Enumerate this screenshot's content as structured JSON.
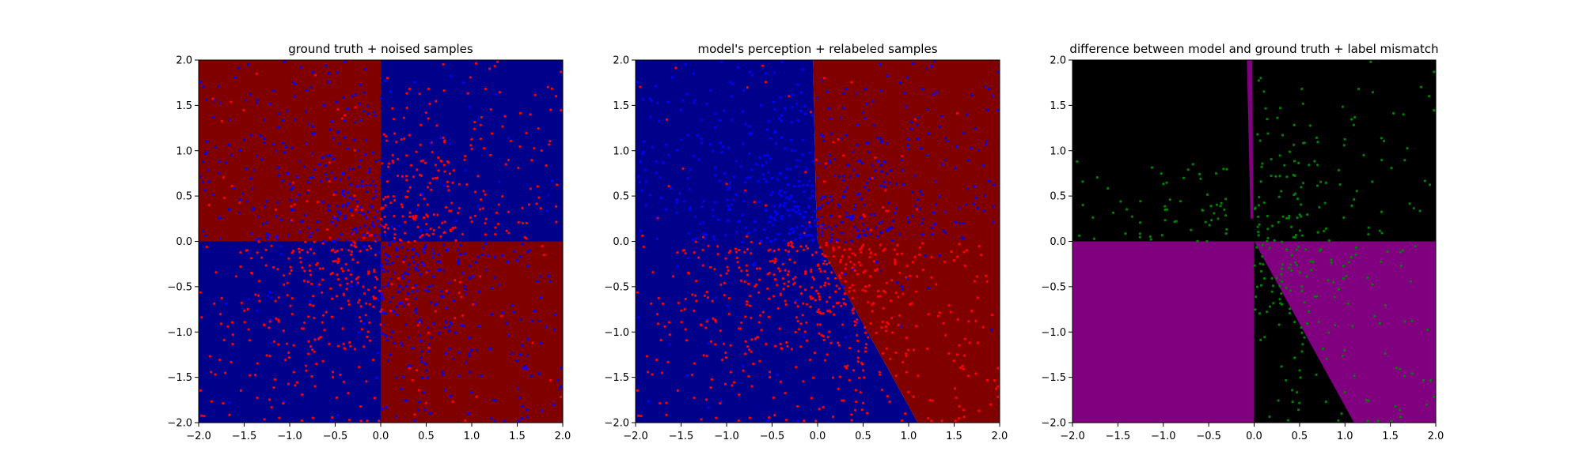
{
  "figure": {
    "background": "#ffffff"
  },
  "palette": {
    "dark_red": "#800000",
    "dark_blue": "#00008b",
    "red_point": "#ff0000",
    "blue_point": "#0000ff",
    "black": "#000000",
    "purple": "#800080",
    "green_point": "#008000"
  },
  "chart_data": [
    {
      "type": "scatter",
      "title": "ground truth + noised samples",
      "xlabel": "",
      "ylabel": "",
      "xlim": [
        -2.0,
        2.0
      ],
      "ylim": [
        -2.0,
        2.0
      ],
      "xticks": [
        "−2.0",
        "−1.5",
        "−1.0",
        "−0.5",
        "0.0",
        "0.5",
        "1.0",
        "1.5",
        "2.0"
      ],
      "yticks": [
        "−2.0",
        "−1.5",
        "−1.0",
        "−0.5",
        "0.0",
        "0.5",
        "1.0",
        "1.5",
        "2.0"
      ],
      "grid": false,
      "background_regions": "quadrants: top-left and bottom-right dark red (#800000); top-right and bottom-left dark blue (#00008b)",
      "series": [
        {
          "color": "#ff0000",
          "count": 600,
          "distribution": "roughly uniform in [-2,2]², denser near origin, mostly in dark-blue quadrants"
        },
        {
          "color": "#0000ff",
          "count": 600,
          "distribution": "roughly uniform in [-2,2]², denser near origin, mostly in dark-red quadrants"
        }
      ]
    },
    {
      "type": "scatter",
      "title": "model's perception + relabeled samples",
      "xlabel": "",
      "ylabel": "",
      "xlim": [
        -2.0,
        2.0
      ],
      "ylim": [
        -2.0,
        2.0
      ],
      "xticks": [
        "−2.0",
        "−1.5",
        "−1.0",
        "−0.5",
        "0.0",
        "0.5",
        "1.0",
        "1.5",
        "2.0"
      ],
      "yticks": [
        "−2.0",
        "−1.5",
        "−1.0",
        "−0.5",
        "0.0",
        "0.5",
        "1.0",
        "1.5",
        "2.0"
      ],
      "grid": false,
      "background_regions": "dark red to the right of boundary, dark blue to the left; boundary from (-0.05,2.0) to (0.0,0.0) then to (1.1,-2.0)",
      "decision_boundary": [
        [
          -0.05,
          2.0
        ],
        [
          -0.02,
          0.5
        ],
        [
          0.0,
          0.0
        ],
        [
          1.1,
          -2.0
        ]
      ],
      "series": [
        {
          "color": "#0000ff",
          "count": 600,
          "distribution": "points relabeled blue, mostly upper half"
        },
        {
          "color": "#ff0000",
          "count": 600,
          "distribution": "points relabeled red, mostly lower half"
        }
      ]
    },
    {
      "type": "scatter",
      "title": "difference between model and ground truth + label mismatch",
      "xlabel": "",
      "ylabel": "",
      "xlim": [
        -2.0,
        2.0
      ],
      "ylim": [
        -2.0,
        2.0
      ],
      "xticks": [
        "−2.0",
        "−1.5",
        "−1.0",
        "−0.5",
        "0.0",
        "0.5",
        "1.0",
        "1.5",
        "2.0"
      ],
      "yticks": [
        "−2.0",
        "−1.5",
        "−1.0",
        "−0.5",
        "0.0",
        "0.5",
        "1.0",
        "1.5",
        "2.0"
      ],
      "grid": false,
      "background_regions": "black where model agrees with ground truth, purple (#800080) where it disagrees: bottom-left quadrant, a thin sliver near x=0 top half, and the wedge right of boundary in bottom-right quadrant",
      "series": [
        {
          "color": "#008000",
          "count": 350,
          "distribution": "mismatched labels, mostly in right half and left top region"
        }
      ]
    }
  ]
}
